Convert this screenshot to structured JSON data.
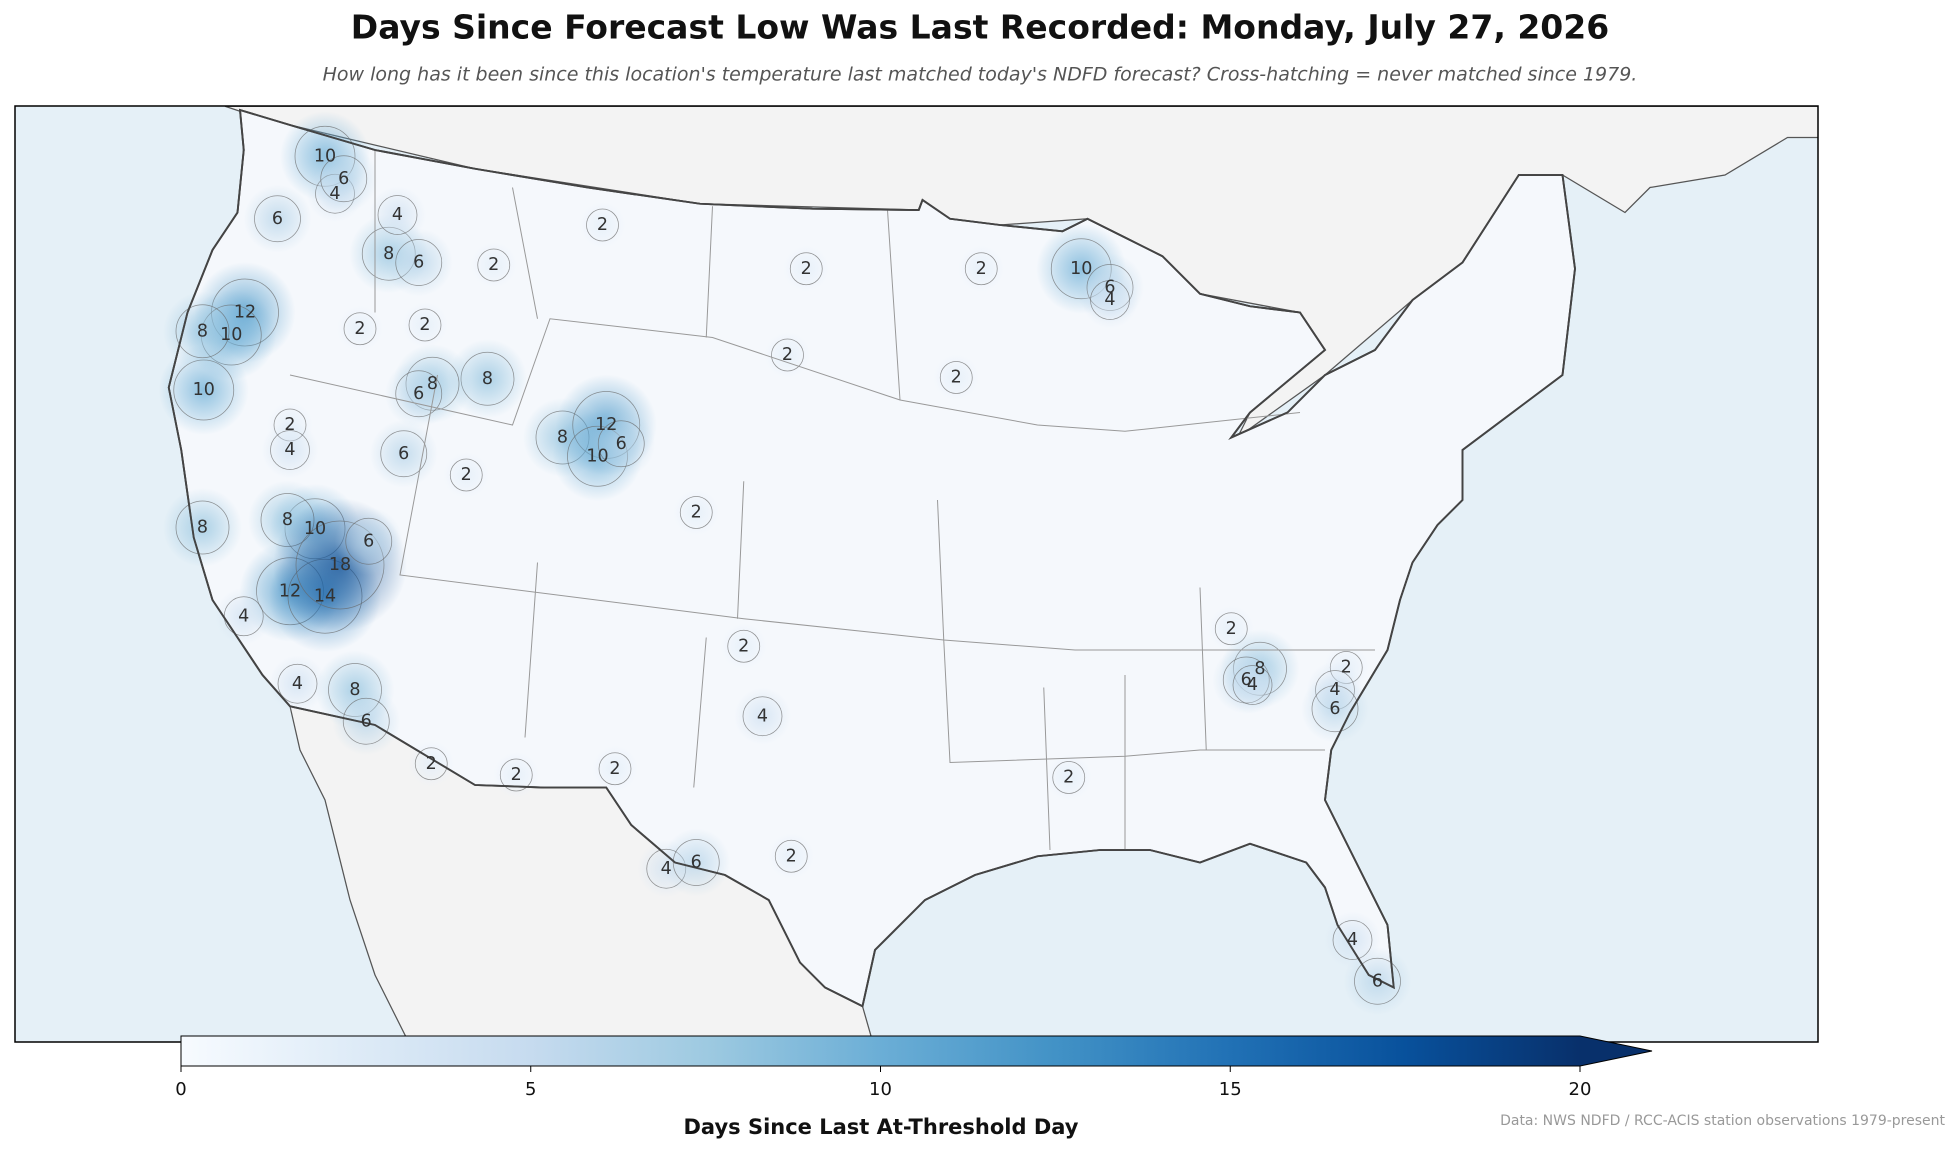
{
  "chart_data": {
    "type": "map",
    "title": "Days Since Forecast Low Was Last Recorded: Monday, July 27, 2026",
    "subtitle": "How long has it been since this location's temperature last matched today's NDFD forecast? Cross-hatching = never matched since 1979.",
    "colorbar_label": "Days Since Last At-Threshold Day",
    "source": "Data: NWS NDFD / RCC-ACIS station observations 1979-present",
    "colormap": "Blues",
    "clim": [
      0,
      20
    ],
    "cticks": [
      0,
      5,
      10,
      15,
      20
    ],
    "extend": "max",
    "contour_labels": [
      10,
      4,
      6,
      6,
      12,
      10,
      10,
      8,
      8,
      6,
      4,
      2,
      2,
      2,
      2,
      8,
      8,
      6,
      6,
      2,
      2,
      4,
      8,
      12,
      10,
      6,
      10,
      8,
      12,
      14,
      18,
      6,
      8,
      4,
      4,
      8,
      6,
      2,
      2,
      2,
      2,
      4,
      2,
      2,
      2,
      2,
      2,
      10,
      6,
      4,
      2,
      8,
      6,
      4,
      2,
      4,
      6,
      2,
      2,
      4,
      6,
      4,
      6
    ]
  }
}
